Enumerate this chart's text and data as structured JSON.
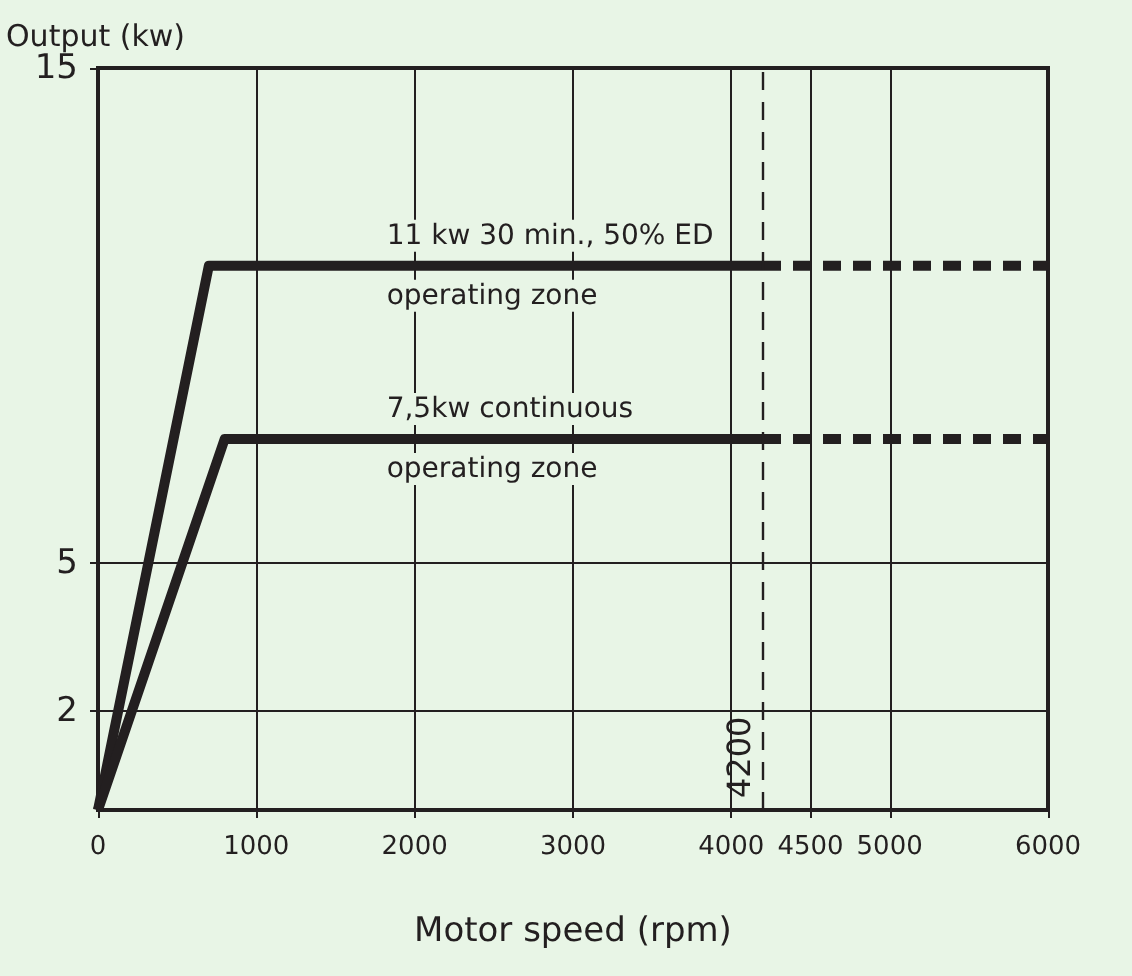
{
  "chart_data": {
    "type": "line",
    "ylabel": "Output (kw)",
    "xlabel": "Motor speed (rpm)",
    "xlim": [
      0,
      6000
    ],
    "xticks": [
      0,
      1000,
      2000,
      3000,
      4000,
      4500,
      5000,
      6000
    ],
    "ylim": [
      0,
      15
    ],
    "yticks": [
      2,
      5,
      15
    ],
    "grid": true,
    "marker": "none",
    "series": [
      {
        "color": "#231f20",
        "x": [
          0,
          700,
          4200
        ],
        "values": [
          0,
          11,
          11
        ],
        "line_style": "solid"
      },
      {
        "color": "#231f20",
        "x": [
          4200,
          6000
        ],
        "values": [
          11,
          11
        ],
        "line_style": "dashed"
      },
      {
        "color": "#231f20",
        "x": [
          0,
          800,
          4200
        ],
        "values": [
          0,
          7.5,
          7.5
        ],
        "line_style": "solid"
      },
      {
        "color": "#231f20",
        "x": [
          4200,
          6000
        ],
        "values": [
          7.5,
          7.5
        ],
        "line_style": "dashed"
      }
    ],
    "ref_lines": [
      {
        "axis": "x",
        "value": 4200,
        "label": "4200",
        "line_style": "dashed",
        "color": "#231f20"
      }
    ],
    "annotations": [
      "11 kw 30 min., 50% ED",
      "operating zone",
      "7,5kw continuous",
      "operating zone"
    ]
  }
}
